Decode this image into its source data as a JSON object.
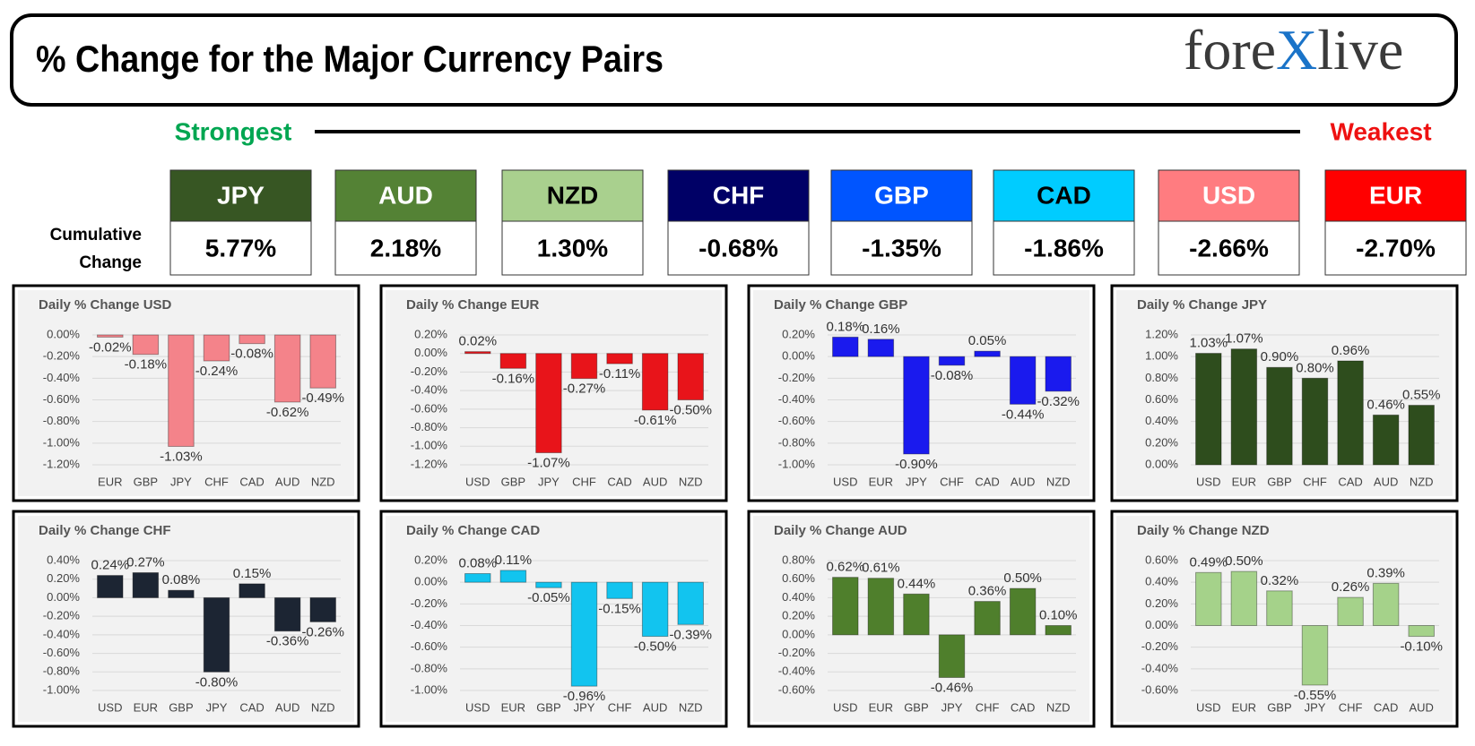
{
  "header": {
    "title": "% Change for the Major Currency Pairs",
    "logo_left": "fore",
    "logo_mark": "X",
    "logo_right": "live"
  },
  "ranking": {
    "strongest": "Strongest",
    "weakest": "Weakest",
    "label_line1": "Cumulative",
    "label_line2": "Change",
    "currencies": [
      {
        "name": "JPY",
        "change": "5.77%",
        "color": "#375623",
        "text_color": "#ffffff"
      },
      {
        "name": "AUD",
        "change": "2.18%",
        "color": "#548235",
        "text_color": "#ffffff"
      },
      {
        "name": "NZD",
        "change": "1.30%",
        "color": "#a9d08e",
        "text_color": "#000000"
      },
      {
        "name": "CHF",
        "change": "-0.68%",
        "color": "#000066",
        "text_color": "#ffffff"
      },
      {
        "name": "GBP",
        "change": "-1.35%",
        "color": "#0055ff",
        "text_color": "#ffffff"
      },
      {
        "name": "CAD",
        "change": "-1.86%",
        "color": "#00ccff",
        "text_color": "#000000"
      },
      {
        "name": "USD",
        "change": "-2.66%",
        "color": "#ff7c80",
        "text_color": "#ffffff"
      },
      {
        "name": "EUR",
        "change": "-2.70%",
        "color": "#ff0000",
        "text_color": "#ffffff"
      }
    ]
  },
  "chart_data": [
    {
      "type": "bar",
      "title": "Daily % Change USD",
      "color": "#f4838a",
      "categories": [
        "EUR",
        "GBP",
        "JPY",
        "CHF",
        "CAD",
        "AUD",
        "NZD"
      ],
      "values": [
        -0.02,
        -0.18,
        -1.03,
        -0.24,
        -0.08,
        -0.62,
        -0.49
      ],
      "value_labels": [
        "-0.02%",
        "-0.18%",
        "-1.03%",
        "-0.24%",
        "-0.08%",
        "-0.62%",
        "-0.49%"
      ],
      "ylim": [
        -1.2,
        0.0
      ],
      "yticks": [
        {
          "value": 0.0,
          "label": "0.00%"
        },
        {
          "value": -0.2,
          "label": "-0.20%"
        },
        {
          "value": -0.4,
          "label": "-0.40%"
        },
        {
          "value": -0.6,
          "label": "-0.60%"
        },
        {
          "value": -0.8,
          "label": "-0.80%"
        },
        {
          "value": -1.0,
          "label": "-1.00%"
        },
        {
          "value": -1.2,
          "label": "-1.20%"
        }
      ]
    },
    {
      "type": "bar",
      "title": "Daily % Change EUR",
      "color": "#e8141a",
      "categories": [
        "USD",
        "GBP",
        "JPY",
        "CHF",
        "CAD",
        "AUD",
        "NZD"
      ],
      "values": [
        0.02,
        -0.16,
        -1.07,
        -0.27,
        -0.11,
        -0.61,
        -0.5
      ],
      "value_labels": [
        "0.02%",
        "-0.16%",
        "-1.07%",
        "-0.27%",
        "-0.11%",
        "-0.61%",
        "-0.50%"
      ],
      "ylim": [
        -1.2,
        0.2
      ],
      "yticks": [
        {
          "value": 0.2,
          "label": "0.20%"
        },
        {
          "value": 0.0,
          "label": "0.00%"
        },
        {
          "value": -0.2,
          "label": "-0.20%"
        },
        {
          "value": -0.4,
          "label": "-0.40%"
        },
        {
          "value": -0.6,
          "label": "-0.60%"
        },
        {
          "value": -0.8,
          "label": "-0.80%"
        },
        {
          "value": -1.0,
          "label": "-1.00%"
        },
        {
          "value": -1.2,
          "label": "-1.20%"
        }
      ]
    },
    {
      "type": "bar",
      "title": "Daily % Change GBP",
      "color": "#1a1aee",
      "categories": [
        "USD",
        "EUR",
        "JPY",
        "CHF",
        "CAD",
        "AUD",
        "NZD"
      ],
      "values": [
        0.18,
        0.16,
        -0.9,
        -0.08,
        0.05,
        -0.44,
        -0.32
      ],
      "value_labels": [
        "0.18%",
        "0.16%",
        "-0.90%",
        "-0.08%",
        "0.05%",
        "-0.44%",
        "-0.32%"
      ],
      "ylim": [
        -1.0,
        0.2
      ],
      "yticks": [
        {
          "value": 0.2,
          "label": "0.20%"
        },
        {
          "value": 0.0,
          "label": "0.00%"
        },
        {
          "value": -0.2,
          "label": "-0.20%"
        },
        {
          "value": -0.4,
          "label": "-0.40%"
        },
        {
          "value": -0.6,
          "label": "-0.60%"
        },
        {
          "value": -0.8,
          "label": "-0.80%"
        },
        {
          "value": -1.0,
          "label": "-1.00%"
        }
      ]
    },
    {
      "type": "bar",
      "title": "Daily % Change JPY",
      "color": "#2e4d1d",
      "categories": [
        "USD",
        "EUR",
        "GBP",
        "CHF",
        "CAD",
        "AUD",
        "NZD"
      ],
      "values": [
        1.03,
        1.07,
        0.9,
        0.8,
        0.96,
        0.46,
        0.55
      ],
      "value_labels": [
        "1.03%",
        "1.07%",
        "0.90%",
        "0.80%",
        "0.96%",
        "0.46%",
        "0.55%"
      ],
      "ylim": [
        0.0,
        1.2
      ],
      "yticks": [
        {
          "value": 1.2,
          "label": "1.20%"
        },
        {
          "value": 1.0,
          "label": "1.00%"
        },
        {
          "value": 0.8,
          "label": "0.80%"
        },
        {
          "value": 0.6,
          "label": "0.60%"
        },
        {
          "value": 0.4,
          "label": "0.40%"
        },
        {
          "value": 0.2,
          "label": "0.20%"
        },
        {
          "value": 0.0,
          "label": "0.00%"
        }
      ]
    },
    {
      "type": "bar",
      "title": "Daily % Change CHF",
      "color": "#1c2533",
      "categories": [
        "USD",
        "EUR",
        "GBP",
        "JPY",
        "CAD",
        "AUD",
        "NZD"
      ],
      "values": [
        0.24,
        0.27,
        0.08,
        -0.8,
        0.15,
        -0.36,
        -0.26
      ],
      "value_labels": [
        "0.24%",
        "0.27%",
        "0.08%",
        "-0.80%",
        "0.15%",
        "-0.36%",
        "-0.26%"
      ],
      "ylim": [
        -1.0,
        0.4
      ],
      "yticks": [
        {
          "value": 0.4,
          "label": "0.40%"
        },
        {
          "value": 0.2,
          "label": "0.20%"
        },
        {
          "value": 0.0,
          "label": "0.00%"
        },
        {
          "value": -0.2,
          "label": "-0.20%"
        },
        {
          "value": -0.4,
          "label": "-0.40%"
        },
        {
          "value": -0.6,
          "label": "-0.60%"
        },
        {
          "value": -0.8,
          "label": "-0.80%"
        },
        {
          "value": -1.0,
          "label": "-1.00%"
        }
      ]
    },
    {
      "type": "bar",
      "title": "Daily % Change CAD",
      "color": "#12c4ef",
      "categories": [
        "USD",
        "EUR",
        "GBP",
        "JPY",
        "CHF",
        "AUD",
        "NZD"
      ],
      "values": [
        0.08,
        0.11,
        -0.05,
        -0.96,
        -0.15,
        -0.5,
        -0.39
      ],
      "value_labels": [
        "0.08%",
        "0.11%",
        "-0.05%",
        "-0.96%",
        "-0.15%",
        "-0.50%",
        "-0.39%"
      ],
      "ylim": [
        -1.0,
        0.2
      ],
      "yticks": [
        {
          "value": 0.2,
          "label": "0.20%"
        },
        {
          "value": 0.0,
          "label": "0.00%"
        },
        {
          "value": -0.2,
          "label": "-0.20%"
        },
        {
          "value": -0.4,
          "label": "-0.40%"
        },
        {
          "value": -0.6,
          "label": "-0.60%"
        },
        {
          "value": -0.8,
          "label": "-0.80%"
        },
        {
          "value": -1.0,
          "label": "-1.00%"
        }
      ]
    },
    {
      "type": "bar",
      "title": "Daily % Change AUD",
      "color": "#4f7f2c",
      "categories": [
        "USD",
        "EUR",
        "GBP",
        "JPY",
        "CHF",
        "CAD",
        "NZD"
      ],
      "values": [
        0.62,
        0.61,
        0.44,
        -0.46,
        0.36,
        0.5,
        0.1
      ],
      "value_labels": [
        "0.62%",
        "0.61%",
        "0.44%",
        "-0.46%",
        "0.36%",
        "0.50%",
        "0.10%"
      ],
      "ylim": [
        -0.6,
        0.8
      ],
      "yticks": [
        {
          "value": 0.8,
          "label": "0.80%"
        },
        {
          "value": 0.6,
          "label": "0.60%"
        },
        {
          "value": 0.4,
          "label": "0.40%"
        },
        {
          "value": 0.2,
          "label": "0.20%"
        },
        {
          "value": 0.0,
          "label": "0.00%"
        },
        {
          "value": -0.2,
          "label": "-0.20%"
        },
        {
          "value": -0.4,
          "label": "-0.40%"
        },
        {
          "value": -0.6,
          "label": "-0.60%"
        }
      ]
    },
    {
      "type": "bar",
      "title": "Daily % Change NZD",
      "color": "#a5d28a",
      "categories": [
        "USD",
        "EUR",
        "GBP",
        "JPY",
        "CHF",
        "CAD",
        "AUD"
      ],
      "values": [
        0.49,
        0.5,
        0.32,
        -0.55,
        0.26,
        0.39,
        -0.1
      ],
      "value_labels": [
        "0.49%",
        "0.50%",
        "0.32%",
        "-0.55%",
        "0.26%",
        "0.39%",
        "-0.10%"
      ],
      "ylim": [
        -0.6,
        0.6
      ],
      "yticks": [
        {
          "value": 0.6,
          "label": "0.60%"
        },
        {
          "value": 0.4,
          "label": "0.40%"
        },
        {
          "value": 0.2,
          "label": "0.20%"
        },
        {
          "value": 0.0,
          "label": "0.00%"
        },
        {
          "value": -0.2,
          "label": "-0.20%"
        },
        {
          "value": -0.4,
          "label": "-0.40%"
        },
        {
          "value": -0.6,
          "label": "-0.60%"
        }
      ]
    }
  ]
}
